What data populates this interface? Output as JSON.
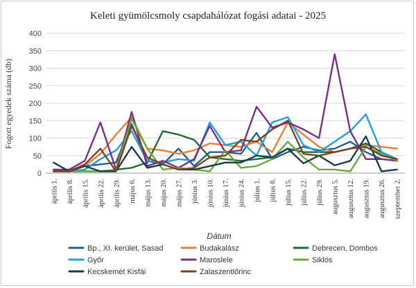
{
  "chart_data": {
    "type": "line",
    "title": "Keleti gyümölcsmoly csapdahálózat fogási adatai - 2025",
    "xlabel": "Dátum",
    "ylabel": "Fogott egyedek száma (db)",
    "ylim": [
      0,
      400
    ],
    "yticks": [
      0,
      50,
      100,
      150,
      200,
      250,
      300,
      350,
      400
    ],
    "grid": "horizontal",
    "legend_position": "bottom",
    "x": [
      "április 1.",
      "április 8.",
      "április 15.",
      "április 22.",
      "április 29.",
      "május 6.",
      "május 13.",
      "május 20.",
      "május 27.",
      "június 3.",
      "június 10.",
      "június 17.",
      "június 24.",
      "július 1.",
      "július 8.",
      "július 15.",
      "július 22.",
      "július 29.",
      "augusztus 5.",
      "augusztus 12.",
      "augusztus 19.",
      "augusztus 26.",
      "szeptember 2."
    ],
    "series": [
      {
        "name": "Bp., XI. kerület, Sasad",
        "color": "#1f5f8b",
        "values": [
          10,
          8,
          20,
          25,
          30,
          140,
          35,
          25,
          70,
          20,
          60,
          60,
          55,
          115,
          40,
          60,
          75,
          65,
          70,
          90,
          60,
          40,
          35
        ]
      },
      {
        "name": "Budakalász",
        "color": "#ed7d31",
        "values": [
          5,
          5,
          20,
          55,
          110,
          160,
          70,
          65,
          55,
          65,
          85,
          80,
          75,
          90,
          60,
          145,
          110,
          75,
          60,
          70,
          80,
          75,
          70
        ]
      },
      {
        "name": "Debrecen, Dombos",
        "color": "#1e6b35",
        "values": [
          5,
          5,
          5,
          5,
          10,
          15,
          30,
          120,
          110,
          95,
          45,
          40,
          35,
          40,
          45,
          70,
          60,
          60,
          60,
          70,
          85,
          60,
          35
        ]
      },
      {
        "name": "Győr",
        "color": "#1ba1e2",
        "values": [
          5,
          5,
          10,
          40,
          65,
          120,
          35,
          30,
          40,
          35,
          145,
          80,
          90,
          50,
          145,
          160,
          80,
          60,
          90,
          120,
          168,
          60,
          40
        ]
      },
      {
        "name": "Maroslele",
        "color": "#7b2c8c",
        "values": [
          10,
          10,
          35,
          145,
          10,
          175,
          20,
          35,
          15,
          40,
          135,
          60,
          65,
          190,
          130,
          145,
          125,
          100,
          340,
          120,
          40,
          40,
          35
        ]
      },
      {
        "name": "Siklós",
        "color": "#6aaa3a",
        "values": [
          5,
          5,
          5,
          5,
          10,
          155,
          70,
          10,
          15,
          10,
          5,
          65,
          15,
          20,
          40,
          90,
          45,
          10,
          10,
          5,
          75,
          55,
          35
        ]
      },
      {
        "name": "Kecskemét Kisfái",
        "color": "#1b3a4b",
        "values": [
          30,
          5,
          20,
          5,
          5,
          75,
          15,
          25,
          10,
          10,
          20,
          30,
          30,
          50,
          45,
          70,
          28,
          50,
          22,
          35,
          105,
          5,
          10
        ]
      },
      {
        "name": "Zalaszentlőrinc",
        "color": "#7b4224",
        "values": [
          5,
          5,
          25,
          70,
          5,
          135,
          45,
          25,
          10,
          15,
          45,
          50,
          95,
          90,
          125,
          150,
          55,
          50,
          60,
          70,
          75,
          50,
          40
        ]
      }
    ]
  }
}
